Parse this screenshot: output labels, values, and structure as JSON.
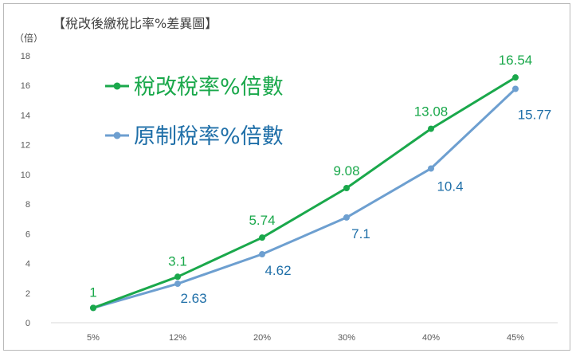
{
  "chart_data": {
    "type": "line",
    "title": "【稅改後繳稅比率%差異圖】",
    "ylabel": "（倍）",
    "categories": [
      "5%",
      "12%",
      "20%",
      "30%",
      "40%",
      "45%"
    ],
    "ylim": [
      0,
      18
    ],
    "yticks": [
      "0",
      "2",
      "4",
      "6",
      "8",
      "10",
      "12",
      "14",
      "16",
      "18"
    ],
    "grid": false,
    "legend_position": "top-left",
    "series": [
      {
        "name": "稅改稅率%倍數",
        "color": "#1aa84b",
        "values": [
          1,
          3.1,
          5.74,
          9.08,
          13.08,
          16.54
        ],
        "labels": [
          "1",
          "3.1",
          "5.74",
          "9.08",
          "13.08",
          "16.54"
        ]
      },
      {
        "name": "原制稅率%倍數",
        "color": "#6d9fd0",
        "label_color": "#1f6fa8",
        "values": [
          1,
          2.63,
          4.62,
          7.1,
          10.4,
          15.77
        ],
        "labels": [
          "",
          "2.63",
          "4.62",
          "7.1",
          "10.4",
          "15.77"
        ]
      }
    ]
  }
}
